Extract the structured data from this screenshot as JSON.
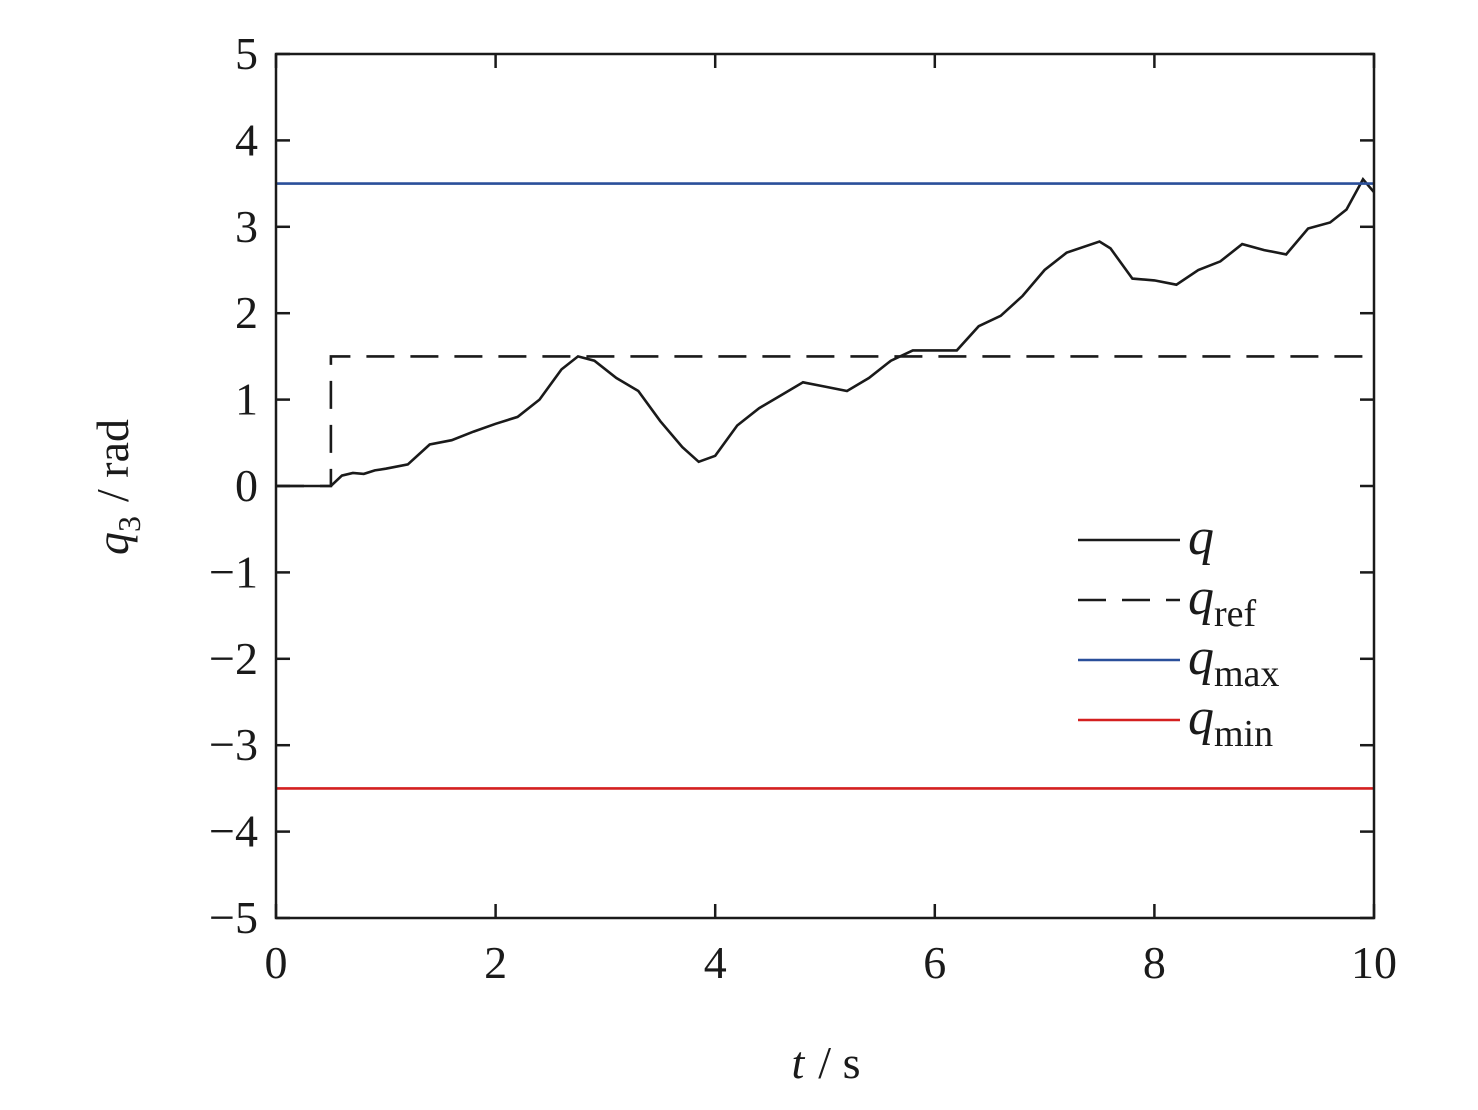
{
  "chart_data": {
    "type": "line",
    "xlabel": {
      "symbol": "t",
      "unit": "/ s"
    },
    "ylabel": {
      "symbol": "q",
      "subscript": "3",
      "unit": "/ rad"
    },
    "xlim": [
      0,
      10
    ],
    "xticks": [
      0,
      2,
      4,
      6,
      8,
      10
    ],
    "ylim": [
      -5,
      5
    ],
    "yticks": [
      {
        "value": -5,
        "label": "−5"
      },
      {
        "value": -4,
        "label": "−4"
      },
      {
        "value": -3,
        "label": "−3"
      },
      {
        "value": -2,
        "label": "−2"
      },
      {
        "value": -1,
        "label": "−1"
      },
      0,
      1,
      2,
      3,
      4,
      5
    ],
    "legend": "lower right",
    "series": [
      {
        "name": "q",
        "color": "#1a1a1a",
        "dash": false,
        "x": [
          0,
          0.5,
          0.6,
          0.7,
          0.8,
          0.9,
          1.0,
          1.2,
          1.4,
          1.6,
          1.8,
          2.0,
          2.2,
          2.4,
          2.6,
          2.75,
          2.9,
          3.1,
          3.3,
          3.5,
          3.7,
          3.85,
          4.0,
          4.2,
          4.4,
          4.6,
          4.8,
          5.0,
          5.2,
          5.4,
          5.6,
          5.8,
          6.0,
          6.2,
          6.4,
          6.6,
          6.8,
          7.0,
          7.2,
          7.5,
          7.6,
          7.8,
          8.0,
          8.2,
          8.4,
          8.6,
          8.8,
          9.0,
          9.2,
          9.4,
          9.6,
          9.75,
          9.9,
          10
        ],
        "values": [
          0,
          0,
          0.12,
          0.15,
          0.14,
          0.18,
          0.2,
          0.25,
          0.48,
          0.53,
          0.63,
          0.72,
          0.8,
          1.0,
          1.35,
          1.5,
          1.45,
          1.25,
          1.1,
          0.75,
          0.45,
          0.28,
          0.35,
          0.7,
          0.9,
          1.05,
          1.2,
          1.15,
          1.1,
          1.25,
          1.45,
          1.57,
          1.57,
          1.57,
          1.85,
          1.97,
          2.2,
          2.5,
          2.7,
          2.83,
          2.75,
          2.4,
          2.38,
          2.33,
          2.5,
          2.6,
          2.8,
          2.73,
          2.68,
          2.98,
          3.05,
          3.2,
          3.55,
          3.4
        ]
      },
      {
        "name": "q",
        "subscript": "ref",
        "color": "#1a1a1a",
        "dash": true,
        "x": [
          0,
          0.5,
          0.5,
          10
        ],
        "values": [
          0,
          0,
          1.5,
          1.5
        ]
      },
      {
        "name": "q",
        "subscript": "max",
        "color": "#2a4f9a",
        "dash": false,
        "x": [
          0,
          10
        ],
        "values": [
          3.5,
          3.5
        ]
      },
      {
        "name": "q",
        "subscript": "min",
        "color": "#d42020",
        "dash": false,
        "x": [
          0,
          10
        ],
        "values": [
          -3.5,
          -3.5
        ]
      }
    ]
  }
}
